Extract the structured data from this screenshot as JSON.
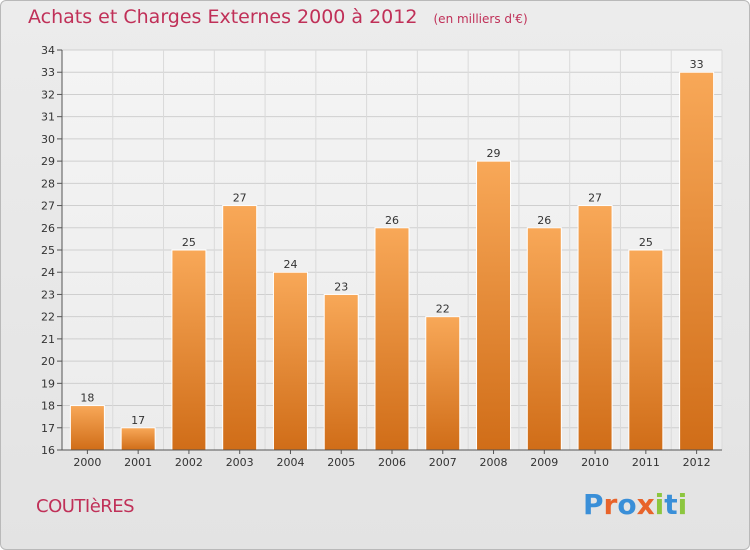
{
  "title": "Achats et Charges Externes 2000 à 2012",
  "subtitle": "(en milliers d'€)",
  "commune": "COUTIèRES",
  "logo": {
    "letters": [
      "P",
      "r",
      "o",
      "x",
      "i",
      "t",
      "i"
    ],
    "colors": [
      "#3a8fd8",
      "#e8632a",
      "#3a8fd8",
      "#e8632a",
      "#8cc63f",
      "#3a8fd8",
      "#8cc63f"
    ]
  },
  "colors": {
    "title": "#c03058",
    "bar_light": "#f7a556",
    "bar_dark": "#d06d18"
  },
  "chart_data": {
    "type": "bar",
    "categories": [
      "2000",
      "2001",
      "2002",
      "2003",
      "2004",
      "2005",
      "2006",
      "2007",
      "2008",
      "2009",
      "2010",
      "2011",
      "2012"
    ],
    "values": [
      18,
      17,
      25,
      27,
      24,
      23,
      26,
      22,
      29,
      26,
      27,
      25,
      33
    ],
    "ylim": [
      16,
      34
    ],
    "yticks": [
      "16",
      "17",
      "18",
      "19",
      "20",
      "21",
      "22",
      "23",
      "24",
      "25",
      "26",
      "27",
      "28",
      "29",
      "30",
      "31",
      "32",
      "33",
      "34"
    ],
    "grid": true,
    "title": "Achats et Charges Externes 2000 à 2012",
    "ylabel": "",
    "xlabel": ""
  }
}
